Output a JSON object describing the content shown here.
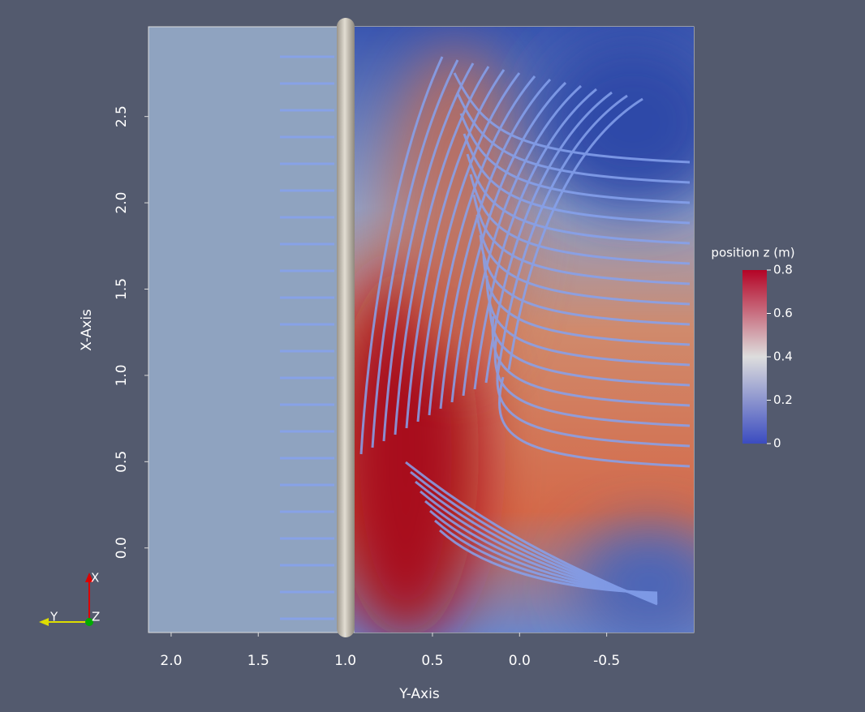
{
  "chart_data": {
    "type": "field",
    "x_label": "Y-Axis",
    "y_label": "X-Axis",
    "xlim": [
      2.13,
      -1.0
    ],
    "ylim": [
      -0.49,
      3.02
    ],
    "xticks": [
      {
        "value": 2,
        "label": "2.0"
      },
      {
        "value": 1.5,
        "label": "1.5"
      },
      {
        "value": 1,
        "label": "1.0"
      },
      0.5,
      {
        "value": 0,
        "label": "0.0"
      },
      -0.5
    ],
    "yticks": [
      {
        "value": 0,
        "label": "0.0"
      },
      0.5,
      {
        "value": 1,
        "label": "1.0"
      },
      1.5,
      {
        "value": 2,
        "label": "2.0"
      },
      2.5
    ],
    "colorbar": {
      "title": "position z (m)",
      "lim": [
        0,
        0.8
      ],
      "ticks": [
        0,
        0.2,
        0.4,
        0.6,
        0.8
      ],
      "colors": [
        "#3b4cc0",
        "#dddddd",
        "#b40426"
      ]
    },
    "triad": {
      "x": "X",
      "y": "Y",
      "z": "Z"
    }
  }
}
